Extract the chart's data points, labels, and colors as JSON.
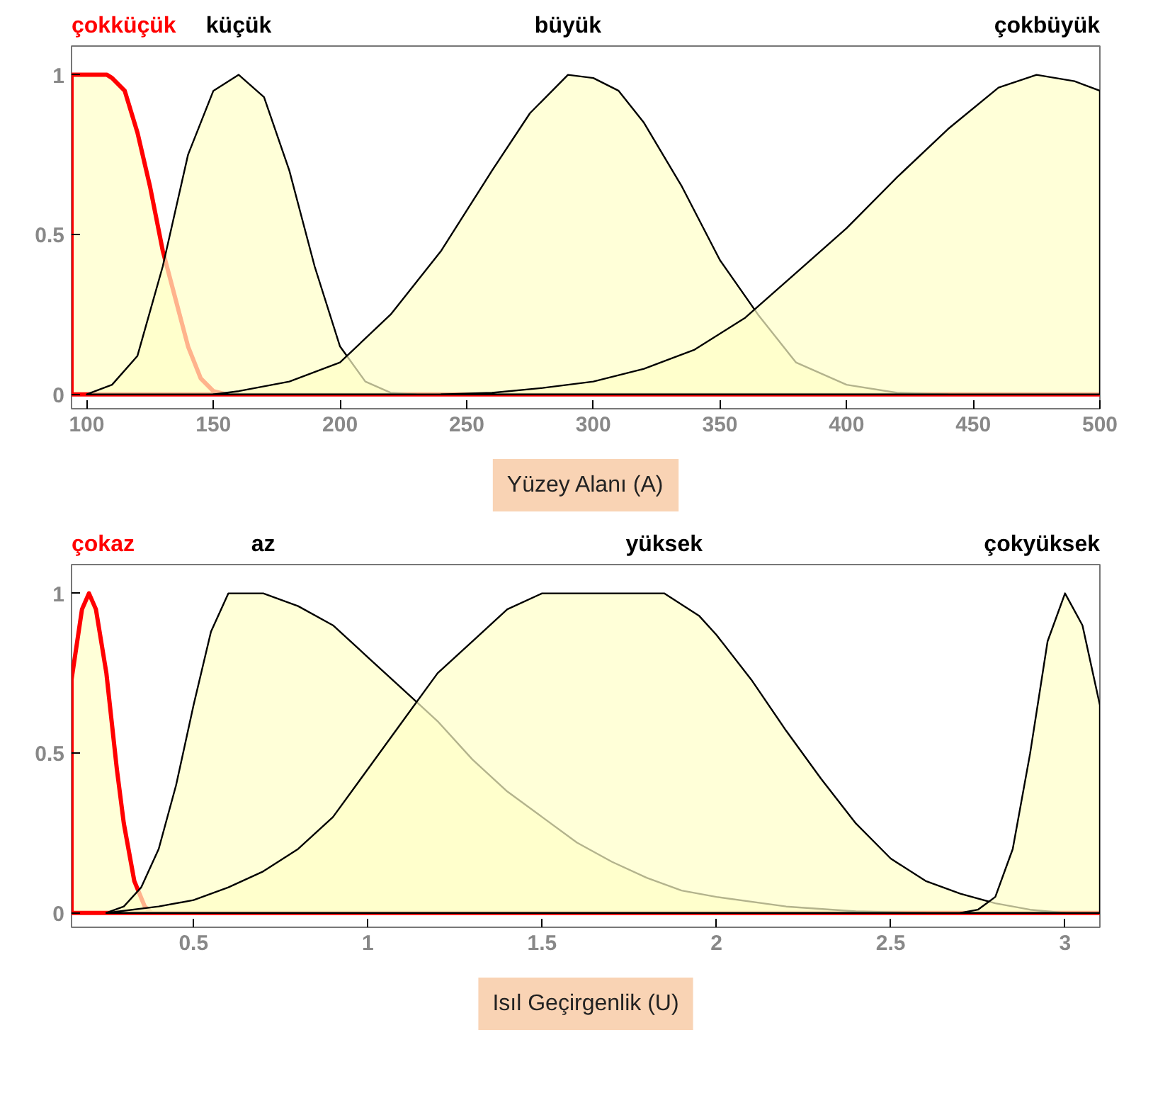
{
  "chart_data": [
    {
      "type": "area",
      "xlabel": "Yüzey Alanı (A)",
      "xlim": [
        94,
        500
      ],
      "ylim": [
        -0.045,
        1.09
      ],
      "xticks": [
        100,
        150,
        200,
        250,
        300,
        350,
        400,
        450,
        500
      ],
      "yticks": [
        0,
        0.5,
        1
      ],
      "grid": false,
      "series": [
        {
          "name": "çokküçük",
          "color": "#ff0000",
          "x": [
            94,
            100,
            108,
            110,
            115,
            120,
            125,
            130,
            135,
            140,
            145,
            150,
            155,
            500
          ],
          "values": [
            1,
            1,
            1,
            0.99,
            0.95,
            0.82,
            0.65,
            0.45,
            0.3,
            0.15,
            0.05,
            0.01,
            0,
            0
          ]
        },
        {
          "name": "küçük",
          "color": "#000000",
          "x": [
            100,
            110,
            120,
            130,
            140,
            150,
            160,
            170,
            180,
            190,
            200,
            210,
            220,
            230
          ],
          "values": [
            0,
            0.03,
            0.12,
            0.4,
            0.75,
            0.95,
            1,
            0.93,
            0.7,
            0.4,
            0.15,
            0.04,
            0.005,
            0
          ]
        },
        {
          "name": "büyük",
          "color": "#000000",
          "x": [
            150,
            160,
            180,
            200,
            220,
            240,
            260,
            275,
            290,
            300,
            310,
            320,
            335,
            350,
            365,
            380,
            400,
            420,
            440
          ],
          "values": [
            0,
            0.01,
            0.04,
            0.1,
            0.25,
            0.45,
            0.7,
            0.88,
            1,
            0.99,
            0.95,
            0.85,
            0.65,
            0.42,
            0.25,
            0.1,
            0.03,
            0.005,
            0
          ]
        },
        {
          "name": "çokbüyük",
          "color": "#000000",
          "x": [
            240,
            260,
            280,
            300,
            320,
            340,
            360,
            380,
            400,
            420,
            440,
            460,
            475,
            490,
            500
          ],
          "values": [
            0,
            0.005,
            0.02,
            0.04,
            0.08,
            0.14,
            0.24,
            0.38,
            0.52,
            0.68,
            0.83,
            0.96,
            1,
            0.98,
            0.95
          ]
        }
      ]
    },
    {
      "type": "area",
      "xlabel": "Isıl Geçirgenlik (U)",
      "xlim": [
        0.15,
        3.1
      ],
      "ylim": [
        -0.045,
        1.09
      ],
      "xticks": [
        0.5,
        1,
        1.5,
        2,
        2.5,
        3
      ],
      "yticks": [
        0,
        0.5,
        1
      ],
      "grid": false,
      "series": [
        {
          "name": "çokaz",
          "color": "#ff0000",
          "x": [
            0.15,
            0.18,
            0.2,
            0.22,
            0.25,
            0.28,
            0.3,
            0.33,
            0.36,
            0.38,
            3.1
          ],
          "values": [
            0.73,
            0.95,
            1,
            0.95,
            0.75,
            0.45,
            0.28,
            0.1,
            0.02,
            0,
            0
          ]
        },
        {
          "name": "az",
          "color": "#000000",
          "x": [
            0.25,
            0.3,
            0.35,
            0.4,
            0.45,
            0.5,
            0.55,
            0.6,
            0.7,
            0.8,
            0.9,
            1.0,
            1.1,
            1.2,
            1.3,
            1.4,
            1.5,
            1.6,
            1.7,
            1.8,
            1.9,
            2.0,
            2.2,
            2.4,
            2.6
          ],
          "values": [
            0,
            0.02,
            0.08,
            0.2,
            0.4,
            0.65,
            0.88,
            1,
            1,
            0.96,
            0.9,
            0.8,
            0.7,
            0.6,
            0.48,
            0.38,
            0.3,
            0.22,
            0.16,
            0.11,
            0.07,
            0.05,
            0.02,
            0.005,
            0
          ]
        },
        {
          "name": "yüksek",
          "color": "#000000",
          "x": [
            0.25,
            0.4,
            0.5,
            0.6,
            0.7,
            0.8,
            0.9,
            1.0,
            1.1,
            1.2,
            1.3,
            1.4,
            1.5,
            1.85,
            1.95,
            2.0,
            2.1,
            2.2,
            2.3,
            2.4,
            2.5,
            2.6,
            2.7,
            2.8,
            2.9,
            3.0
          ],
          "values": [
            0,
            0.02,
            0.04,
            0.08,
            0.13,
            0.2,
            0.3,
            0.45,
            0.6,
            0.75,
            0.85,
            0.95,
            1,
            1,
            0.93,
            0.87,
            0.73,
            0.57,
            0.42,
            0.28,
            0.17,
            0.1,
            0.06,
            0.03,
            0.01,
            0
          ]
        },
        {
          "name": "çokyüksek",
          "color": "#000000",
          "x": [
            2.7,
            2.75,
            2.8,
            2.85,
            2.9,
            2.95,
            3.0,
            3.05,
            3.1
          ],
          "values": [
            0,
            0.01,
            0.05,
            0.2,
            0.5,
            0.85,
            1,
            0.9,
            0.65
          ]
        }
      ]
    }
  ]
}
